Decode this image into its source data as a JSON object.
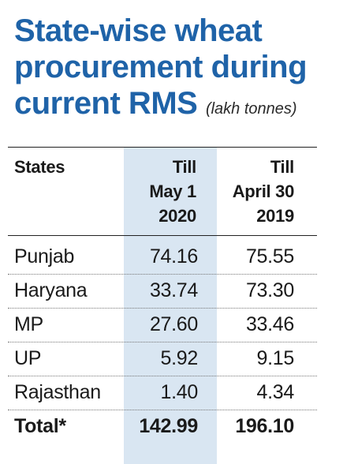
{
  "title": {
    "line1": "State-wise wheat",
    "line2": "procurement during",
    "line3": "current RMS",
    "unit": "(lakh tonnes)"
  },
  "headers": {
    "states": "States",
    "col1": [
      "Till",
      "May 1",
      "2020"
    ],
    "col2": [
      "Till",
      "April 30",
      "2019"
    ]
  },
  "rows": [
    {
      "state": "Punjab",
      "v2020": "74.16",
      "v2019": "75.55"
    },
    {
      "state": "Haryana",
      "v2020": "33.74",
      "v2019": "73.30"
    },
    {
      "state": "MP",
      "v2020": "27.60",
      "v2019": "33.46"
    },
    {
      "state": "UP",
      "v2020": "5.92",
      "v2019": "9.15"
    },
    {
      "state": "Rajasthan",
      "v2020": "1.40",
      "v2019": "4.34"
    }
  ],
  "total": {
    "state": "Total*",
    "v2020": "142.99",
    "v2019": "196.10"
  },
  "colors": {
    "title": "#1f63a8",
    "shade": "#d9e6f2"
  },
  "chart_data": {
    "type": "table",
    "title": "State-wise wheat procurement during current RMS",
    "unit": "lakh tonnes",
    "columns": [
      "States",
      "Till May 1 2020",
      "Till April 30 2019"
    ],
    "categories": [
      "Punjab",
      "Haryana",
      "MP",
      "UP",
      "Rajasthan",
      "Total*"
    ],
    "series": [
      {
        "name": "Till May 1 2020",
        "values": [
          74.16,
          33.74,
          27.6,
          5.92,
          1.4,
          142.99
        ]
      },
      {
        "name": "Till April 30 2019",
        "values": [
          75.55,
          73.3,
          33.46,
          9.15,
          4.34,
          196.1
        ]
      }
    ]
  }
}
